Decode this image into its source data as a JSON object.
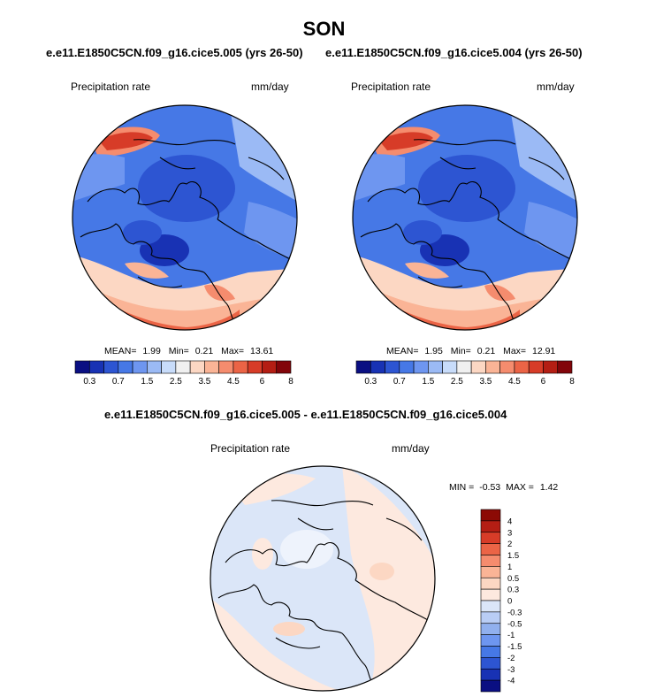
{
  "figure": {
    "title": "SON",
    "case_a": "e.e11.E1850C5CN.f09_g16.cice5.005 (yrs 26-50)",
    "case_b": "e.e11.E1850C5CN.f09_g16.cice5.004 (yrs 26-50)",
    "diff_title": "e.e11.E1850C5CN.f09_g16.cice5.005 - e.e11.E1850C5CN.f09_g16.cice5.004"
  },
  "chart_data": [
    {
      "type": "heatmap",
      "projection": "polar-stereographic",
      "title": "e.e11.E1850C5CN.f09_g16.cice5.005 (yrs 26-50)",
      "variable": "Precipitation rate",
      "units": "mm/day",
      "stats": {
        "mean": "MEAN=",
        "mean_value": "1.99",
        "min": "Min=",
        "min_value": "0.21",
        "max": "Max=",
        "max_value": "13.61"
      },
      "colorbar_labels": [
        "0.3",
        "0.7",
        "1.5",
        "2.5",
        "3.5",
        "4.5",
        "6",
        "8"
      ],
      "colorbar_colors": [
        "#0a0f82",
        "#1832b4",
        "#2d55d2",
        "#4678e6",
        "#6e96f0",
        "#9bbaf5",
        "#c8dcfa",
        "#f0f0f0",
        "#fcd7c3",
        "#fab496",
        "#f58c6e",
        "#eb6446",
        "#d73c28",
        "#b41e14",
        "#82050a"
      ]
    },
    {
      "type": "heatmap",
      "projection": "polar-stereographic",
      "title": "e.e11.E1850C5CN.f09_g16.cice5.004 (yrs 26-50)",
      "variable": "Precipitation rate",
      "units": "mm/day",
      "stats": {
        "mean": "MEAN=",
        "mean_value": "1.95",
        "min": "Min=",
        "min_value": "0.21",
        "max": "Max=",
        "max_value": "12.91"
      },
      "colorbar_labels": [
        "0.3",
        "0.7",
        "1.5",
        "2.5",
        "3.5",
        "4.5",
        "6",
        "8"
      ],
      "colorbar_colors": [
        "#0a0f82",
        "#1832b4",
        "#2d55d2",
        "#4678e6",
        "#6e96f0",
        "#9bbaf5",
        "#c8dcfa",
        "#f0f0f0",
        "#fcd7c3",
        "#fab496",
        "#f58c6e",
        "#eb6446",
        "#d73c28",
        "#b41e14",
        "#82050a"
      ]
    },
    {
      "type": "heatmap",
      "projection": "polar-stereographic",
      "title": "e.e11.E1850C5CN.f09_g16.cice5.005 - e.e11.E1850C5CN.f09_g16.cice5.004",
      "variable": "Precipitation rate",
      "units": "mm/day",
      "stats": {
        "min": "MIN =",
        "min_value": "-0.53",
        "max": "MAX =",
        "max_value": "1.42"
      },
      "colorbar_labels": [
        "4",
        "3",
        "2",
        "1.5",
        "1",
        "0.5",
        "0.3",
        "0",
        "-0.3",
        "-0.5",
        "-1",
        "-1.5",
        "-2",
        "-3",
        "-4"
      ],
      "colorbar_colors": [
        "#8c0a05",
        "#b41e14",
        "#d73c28",
        "#eb6446",
        "#f58c6e",
        "#fab496",
        "#fcd7c3",
        "#fde9df",
        "#dbe6f8",
        "#b9cdf5",
        "#91b0ee",
        "#6e96f0",
        "#4678e6",
        "#2d55d2",
        "#1832b4",
        "#0a0f82"
      ]
    }
  ]
}
